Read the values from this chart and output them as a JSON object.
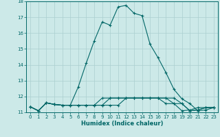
{
  "xlabel": "Humidex (Indice chaleur)",
  "xlim": [
    -0.5,
    23.5
  ],
  "ylim": [
    11,
    18
  ],
  "yticks": [
    11,
    12,
    13,
    14,
    15,
    16,
    17,
    18
  ],
  "xticks": [
    0,
    1,
    2,
    3,
    4,
    5,
    6,
    7,
    8,
    9,
    10,
    11,
    12,
    13,
    14,
    15,
    16,
    17,
    18,
    19,
    20,
    21,
    22,
    23
  ],
  "bg_color": "#cce9e8",
  "grid_color": "#aacfcf",
  "line_color": "#006666",
  "line1_x": [
    0,
    1,
    2,
    3,
    4,
    5,
    6,
    7,
    8,
    9,
    10,
    11,
    12,
    13,
    14,
    15,
    16,
    17,
    18,
    19,
    20,
    21,
    22,
    23
  ],
  "line1_y": [
    11.35,
    11.1,
    11.6,
    11.5,
    11.45,
    11.45,
    12.6,
    14.1,
    15.5,
    16.7,
    16.5,
    17.65,
    17.75,
    17.25,
    17.1,
    15.3,
    14.45,
    13.5,
    12.45,
    11.85,
    11.55,
    11.1,
    11.15,
    11.3
  ],
  "line2_x": [
    0,
    1,
    2,
    3,
    4,
    5,
    6,
    7,
    8,
    9,
    10,
    11,
    12,
    13,
    14,
    15,
    16,
    17,
    18,
    19,
    20,
    21,
    22,
    23
  ],
  "line2_y": [
    11.35,
    11.1,
    11.6,
    11.5,
    11.45,
    11.45,
    11.45,
    11.45,
    11.45,
    11.45,
    11.45,
    11.45,
    11.9,
    11.9,
    11.9,
    11.9,
    11.9,
    11.9,
    11.9,
    11.55,
    11.1,
    11.15,
    11.3,
    11.3
  ],
  "line3_x": [
    0,
    1,
    2,
    3,
    4,
    5,
    6,
    7,
    8,
    9,
    10,
    11,
    12,
    13,
    14,
    15,
    16,
    17,
    18,
    19,
    20,
    21,
    22,
    23
  ],
  "line3_y": [
    11.35,
    11.1,
    11.6,
    11.5,
    11.45,
    11.45,
    11.45,
    11.45,
    11.45,
    11.45,
    11.9,
    11.9,
    11.9,
    11.9,
    11.9,
    11.9,
    11.9,
    11.9,
    11.55,
    11.55,
    11.1,
    11.15,
    11.3,
    11.3
  ],
  "line4_x": [
    0,
    1,
    2,
    3,
    4,
    5,
    6,
    7,
    8,
    9,
    10,
    11,
    12,
    13,
    14,
    15,
    16,
    17,
    18,
    19,
    20,
    21,
    22,
    23
  ],
  "line4_y": [
    11.35,
    11.1,
    11.6,
    11.5,
    11.45,
    11.45,
    11.45,
    11.45,
    11.45,
    11.9,
    11.9,
    11.9,
    11.9,
    11.9,
    11.9,
    11.9,
    11.9,
    11.55,
    11.55,
    11.1,
    11.15,
    11.3,
    11.3,
    11.3
  ],
  "marker": "+",
  "markersize": 3,
  "linewidth": 0.8,
  "tick_fontsize": 5.0,
  "xlabel_fontsize": 6.0
}
